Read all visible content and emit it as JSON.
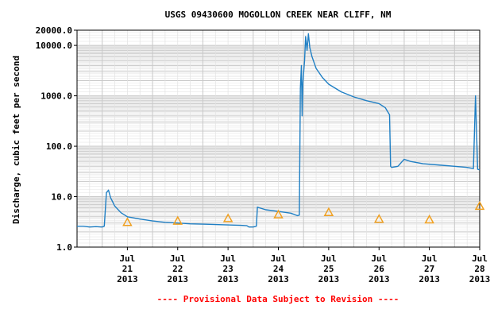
{
  "chart_data": {
    "type": "line",
    "title": "USGS 09430600 MOGOLLON CREEK NEAR CLIFF, NM",
    "ylabel": "Discharge, cubic feet per second",
    "xlabel": "",
    "footnote": "---- Provisional Data Subject to Revision ----",
    "y_scale": "log",
    "ylim": [
      1.0,
      20000.0
    ],
    "y_ticks": [
      {
        "value": 1.0,
        "label": "1.0"
      },
      {
        "value": 10.0,
        "label": "10.0"
      },
      {
        "value": 100.0,
        "label": "100.0"
      },
      {
        "value": 1000.0,
        "label": "1000.0"
      },
      {
        "value": 10000.0,
        "label": "10000.0"
      },
      {
        "value": 20000.0,
        "label": "20000.0"
      }
    ],
    "xlim": [
      "2013-07-20T12:00",
      "2013-07-28T12:00"
    ],
    "x_ticks": [
      {
        "value": "2013-07-21",
        "lines": [
          "Jul",
          "21",
          "2013"
        ]
      },
      {
        "value": "2013-07-22",
        "lines": [
          "Jul",
          "22",
          "2013"
        ]
      },
      {
        "value": "2013-07-23",
        "lines": [
          "Jul",
          "23",
          "2013"
        ]
      },
      {
        "value": "2013-07-24",
        "lines": [
          "Jul",
          "24",
          "2013"
        ]
      },
      {
        "value": "2013-07-25",
        "lines": [
          "Jul",
          "25",
          "2013"
        ]
      },
      {
        "value": "2013-07-26",
        "lines": [
          "Jul",
          "26",
          "2013"
        ]
      },
      {
        "value": "2013-07-27",
        "lines": [
          "Jul",
          "27",
          "2013"
        ]
      },
      {
        "value": "2013-07-28",
        "lines": [
          "Jul",
          "28",
          "2013"
        ]
      }
    ],
    "grid": true,
    "colors": {
      "series": "#1f7fc4",
      "median_marker": "#f0a020",
      "footnote": "#ff0000",
      "grid": "#c8c8c8"
    },
    "series": [
      {
        "type": "line",
        "points": [
          [
            "2013-07-20T12:00",
            2.6
          ],
          [
            "2013-07-20T15:00",
            2.6
          ],
          [
            "2013-07-20T18:00",
            2.5
          ],
          [
            "2013-07-20T21:00",
            2.55
          ],
          [
            "2013-07-21T00:00",
            2.5
          ],
          [
            "2013-07-21T01:00",
            2.6
          ],
          [
            "2013-07-21T02:00",
            12.0
          ],
          [
            "2013-07-21T03:00",
            13.5
          ],
          [
            "2013-07-21T04:00",
            9.5
          ],
          [
            "2013-07-21T06:00",
            6.5
          ],
          [
            "2013-07-21T09:00",
            4.8
          ],
          [
            "2013-07-21T12:00",
            4.0
          ],
          [
            "2013-07-21T18:00",
            3.6
          ],
          [
            "2013-07-22T00:00",
            3.3
          ],
          [
            "2013-07-22T06:00",
            3.1
          ],
          [
            "2013-07-22T12:00",
            3.0
          ],
          [
            "2013-07-22T18:00",
            2.9
          ],
          [
            "2013-07-23T00:00",
            2.85
          ],
          [
            "2013-07-23T06:00",
            2.8
          ],
          [
            "2013-07-23T12:00",
            2.75
          ],
          [
            "2013-07-23T18:00",
            2.7
          ],
          [
            "2013-07-23T21:00",
            2.65
          ],
          [
            "2013-07-23T22:00",
            2.5
          ],
          [
            "2013-07-24T00:00",
            2.5
          ],
          [
            "2013-07-24T01:30",
            2.6
          ],
          [
            "2013-07-24T02:00",
            6.2
          ],
          [
            "2013-07-24T03:00",
            6.0
          ],
          [
            "2013-07-24T06:00",
            5.5
          ],
          [
            "2013-07-24T12:00",
            5.1
          ],
          [
            "2013-07-24T18:00",
            4.7
          ],
          [
            "2013-07-24T21:00",
            4.2
          ],
          [
            "2013-07-24T22:00",
            4.3
          ],
          [
            "2013-07-24T22:30",
            1400
          ],
          [
            "2013-07-24T23:00",
            4000
          ],
          [
            "2013-07-24T23:20",
            400
          ],
          [
            "2013-07-24T23:40",
            1800
          ],
          [
            "2013-07-25T00:30",
            5000
          ],
          [
            "2013-07-25T01:00",
            15000
          ],
          [
            "2013-07-25T01:40",
            8000
          ],
          [
            "2013-07-25T02:20",
            17000
          ],
          [
            "2013-07-25T03:00",
            9000
          ],
          [
            "2013-07-25T04:00",
            6000
          ],
          [
            "2013-07-25T06:00",
            3500
          ],
          [
            "2013-07-25T09:00",
            2300
          ],
          [
            "2013-07-25T12:00",
            1700
          ],
          [
            "2013-07-25T18:00",
            1200
          ],
          [
            "2013-07-26T00:00",
            950
          ],
          [
            "2013-07-26T06:00",
            800
          ],
          [
            "2013-07-26T12:00",
            700
          ],
          [
            "2013-07-26T15:00",
            580
          ],
          [
            "2013-07-26T17:00",
            420
          ],
          [
            "2013-07-26T17:30",
            40
          ],
          [
            "2013-07-26T18:00",
            38
          ],
          [
            "2013-07-26T21:00",
            40
          ],
          [
            "2013-07-27T00:00",
            55
          ],
          [
            "2013-07-27T03:00",
            50
          ],
          [
            "2013-07-27T09:00",
            45
          ],
          [
            "2013-07-27T18:00",
            42
          ],
          [
            "2013-07-28T00:00",
            40
          ],
          [
            "2013-07-28T06:00",
            38
          ],
          [
            "2013-07-28T09:00",
            36
          ],
          [
            "2013-07-28T10:00",
            1000
          ],
          [
            "2013-07-28T11:00",
            35
          ],
          [
            "2013-07-28T12:00",
            34
          ]
        ]
      },
      {
        "type": "marker",
        "marker": "triangle",
        "points": [
          [
            "2013-07-21T12:00",
            3.1
          ],
          [
            "2013-07-22T12:00",
            3.3
          ],
          [
            "2013-07-23T12:00",
            3.7
          ],
          [
            "2013-07-24T12:00",
            4.4
          ],
          [
            "2013-07-25T12:00",
            4.9
          ],
          [
            "2013-07-26T12:00",
            3.6
          ],
          [
            "2013-07-27T12:00",
            3.5
          ],
          [
            "2013-07-28T12:00",
            6.5
          ]
        ]
      }
    ]
  }
}
